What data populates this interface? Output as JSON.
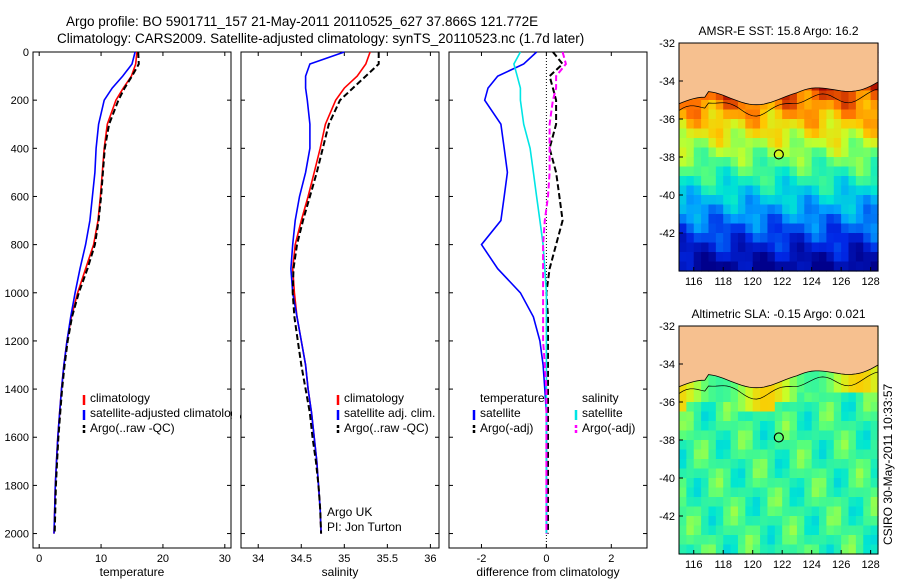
{
  "figure": {
    "title_line1": "Argo profile: BO 5901711_157 21-May-2011 20110525_627 37.866S 121.772E",
    "title_line2": "Climatology: CARS2009. Satellite-adjusted climatology: synTS_20110523.nc (1.7d later)",
    "credit": "CSIRO 30-May-2011 10:33:57"
  },
  "colors": {
    "climatology": "#ff0000",
    "satellite": "#0000ff",
    "argo": "#000000",
    "sal_satellite": "#00e5e5",
    "sal_argo": "#ff00ff",
    "land": "#f6c08f"
  },
  "chart_data": [
    {
      "id": "temperature",
      "type": "line",
      "xlabel": "temperature",
      "ylabel": "",
      "xlim": [
        -1,
        31
      ],
      "ylim": [
        2060,
        0
      ],
      "xticks": [
        "0",
        "10",
        "20",
        "30"
      ],
      "yticks": [
        "0",
        "200",
        "400",
        "600",
        "800",
        "1000",
        "1200",
        "1400",
        "1600",
        "1800",
        "2000"
      ],
      "depth": [
        0,
        50,
        100,
        150,
        200,
        300,
        400,
        500,
        600,
        700,
        800,
        900,
        1000,
        1100,
        1200,
        1300,
        1400,
        1500,
        1600,
        1700,
        1800,
        1900,
        2000
      ],
      "series": [
        {
          "name": "climatology",
          "values": [
            15.8,
            15.6,
            14.9,
            13.6,
            12.4,
            11.0,
            10.5,
            10.2,
            9.9,
            9.5,
            8.8,
            7.5,
            6.2,
            5.2,
            4.5,
            4.0,
            3.6,
            3.3,
            3.0,
            2.8,
            2.6,
            2.5,
            2.4
          ]
        },
        {
          "name": "satellite-adjusted climatology",
          "values": [
            15.5,
            15.0,
            13.5,
            11.8,
            10.5,
            9.6,
            9.2,
            9.0,
            8.6,
            8.2,
            7.5,
            6.6,
            5.8,
            5.1,
            4.5,
            4.0,
            3.6,
            3.3,
            3.0,
            2.8,
            2.6,
            2.5,
            2.4
          ]
        },
        {
          "name": "Argo(..raw -QC)",
          "values": [
            16.0,
            16.1,
            15.0,
            13.8,
            12.8,
            11.3,
            10.6,
            10.3,
            10.0,
            9.6,
            9.0,
            7.8,
            6.4,
            5.3,
            4.6,
            4.1,
            3.7,
            3.4,
            3.1,
            2.9,
            2.7,
            2.6,
            2.5
          ]
        }
      ],
      "legend": [
        "climatology",
        "satellite-adjusted climatology",
        "Argo(..raw -QC)"
      ],
      "legend_placement": "lower-right"
    },
    {
      "id": "salinity",
      "type": "line",
      "xlabel": "salinity",
      "ylabel": "",
      "xlim": [
        33.8,
        36.1
      ],
      "ylim": [
        2060,
        0
      ],
      "xticks": [
        "34",
        "34.5",
        "35",
        "35.5",
        "36"
      ],
      "annotation_line1": "Argo UK",
      "annotation_line2": "PI: Jon Turton",
      "depth": [
        0,
        50,
        100,
        150,
        200,
        300,
        400,
        500,
        600,
        700,
        800,
        900,
        1000,
        1100,
        1200,
        1300,
        1400,
        1500,
        1600,
        1700,
        1800,
        1900,
        2000
      ],
      "series": [
        {
          "name": "climatology",
          "values": [
            35.3,
            35.25,
            35.15,
            35.0,
            34.9,
            34.78,
            34.72,
            34.65,
            34.58,
            34.5,
            34.43,
            34.4,
            34.42,
            34.45,
            34.5,
            34.55,
            34.58,
            34.62,
            34.65,
            34.68,
            34.7,
            34.72,
            34.73
          ]
        },
        {
          "name": "satellite adj. clim.",
          "values": [
            35.0,
            34.6,
            34.55,
            34.55,
            34.57,
            34.6,
            34.6,
            34.55,
            34.48,
            34.43,
            34.4,
            34.38,
            34.4,
            34.45,
            34.5,
            34.55,
            34.58,
            34.62,
            34.65,
            34.68,
            34.7,
            34.72,
            34.73
          ]
        },
        {
          "name": "Argo(..raw -QC)",
          "values": [
            35.4,
            35.4,
            35.25,
            35.1,
            34.95,
            34.82,
            34.75,
            34.68,
            34.6,
            34.52,
            34.45,
            34.41,
            34.4,
            34.42,
            34.46,
            34.5,
            34.55,
            34.6,
            34.63,
            34.67,
            34.7,
            34.72,
            34.73
          ]
        }
      ],
      "legend": [
        "climatology",
        "satellite adj. clim.",
        "Argo(..raw -QC)"
      ],
      "legend_placement": "lower-right"
    },
    {
      "id": "difference",
      "type": "line",
      "xlabel": "difference from climatology",
      "ylabel": "",
      "xlim": [
        -3,
        3.1
      ],
      "ylim": [
        2060,
        0
      ],
      "xticks": [
        "-2",
        "0",
        "2"
      ],
      "depth": [
        0,
        50,
        100,
        150,
        200,
        300,
        400,
        500,
        600,
        700,
        800,
        900,
        1000,
        1100,
        1200,
        1300,
        1400,
        1500,
        1600,
        1700,
        1800,
        1900,
        2000
      ],
      "series": [
        {
          "name": "temperature satellite",
          "values": [
            -0.3,
            -0.7,
            -1.5,
            -1.8,
            -1.9,
            -1.4,
            -1.3,
            -1.2,
            -1.3,
            -1.4,
            -2.0,
            -1.5,
            -0.8,
            -0.4,
            -0.2,
            -0.1,
            -0.05,
            0.0,
            0.0,
            0.0,
            0.0,
            0.0,
            0.0
          ]
        },
        {
          "name": "temperature Argo(-adj)",
          "values": [
            0.2,
            0.5,
            0.1,
            0.2,
            0.3,
            0.3,
            0.1,
            0.3,
            0.4,
            0.5,
            0.3,
            0.1,
            0.0,
            0.05,
            0.05,
            0.05,
            0.05,
            0.05,
            0.05,
            0.05,
            0.05,
            0.05,
            0.05
          ]
        },
        {
          "name": "salinity satellite",
          "values": [
            -0.8,
            -1.0,
            -0.9,
            -0.8,
            -0.8,
            -0.7,
            -0.5,
            -0.4,
            -0.3,
            -0.2,
            -0.1,
            -0.05,
            0.0,
            0.0,
            0.0,
            0.0,
            0.0,
            0.0,
            0.0,
            0.0,
            0.0,
            0.0,
            0.0
          ]
        },
        {
          "name": "salinity Argo(-adj)",
          "values": [
            0.5,
            0.6,
            0.3,
            0.3,
            0.2,
            0.1,
            0.1,
            0.1,
            0.05,
            -0.05,
            -0.1,
            -0.1,
            -0.1,
            -0.1,
            -0.1,
            -0.05,
            0.0,
            0.0,
            0.0,
            0.0,
            0.0,
            0.0,
            0.0
          ]
        }
      ],
      "legend_left_header": "temperature",
      "legend_right_header": "salinity",
      "legend_left": [
        "satellite",
        "Argo(-adj)"
      ],
      "legend_right": [
        "satellite",
        "Argo(-adj)"
      ],
      "legend_placement": "lower-middle"
    },
    {
      "id": "sst_map",
      "type": "heatmap",
      "title": "AMSR-E SST: 15.8 Argo: 16.2",
      "xlim": [
        115,
        128.5
      ],
      "ylim": [
        -44,
        -32
      ],
      "xticks": [
        "116",
        "118",
        "120",
        "122",
        "124",
        "126",
        "128"
      ],
      "yticks": [
        "-32",
        "-34",
        "-36",
        "-38",
        "-40",
        "-42"
      ],
      "marker": {
        "lon": 121.772,
        "lat": -37.866
      }
    },
    {
      "id": "sla_map",
      "type": "heatmap",
      "title": "Altimetric SLA: -0.15 Argo: 0.021",
      "xlim": [
        115,
        128.5
      ],
      "ylim": [
        -44,
        -32
      ],
      "xticks": [
        "116",
        "118",
        "120",
        "122",
        "124",
        "126",
        "128"
      ],
      "yticks": [
        "-32",
        "-34",
        "-36",
        "-38",
        "-40",
        "-42"
      ],
      "marker": {
        "lon": 121.772,
        "lat": -37.866
      }
    }
  ]
}
